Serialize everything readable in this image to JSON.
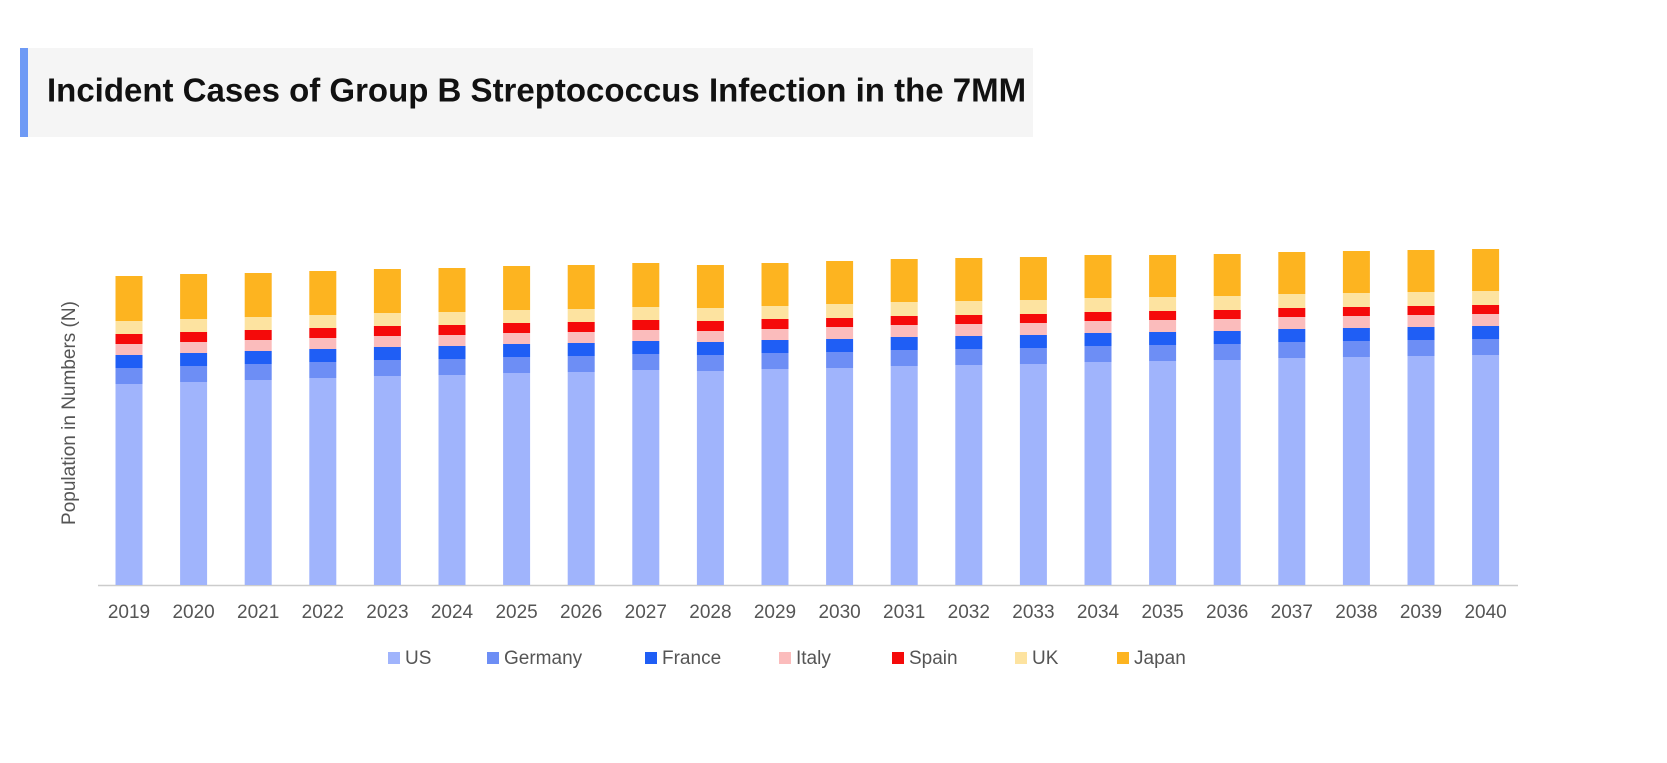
{
  "chart_data": {
    "type": "stacked-bar",
    "title": "Incident Cases of Group B Streptococcus Infection in the 7MM",
    "ylabel": "Population in Numbers (N)",
    "categories": [
      "2019",
      "2020",
      "2021",
      "2022",
      "2023",
      "2024",
      "2025",
      "2026",
      "2027",
      "2028",
      "2029",
      "2030",
      "2031",
      "2032",
      "2033",
      "2034",
      "2035",
      "2036",
      "2037",
      "2038",
      "2039",
      "2040"
    ],
    "ylim": [
      0,
      350
    ],
    "series": [
      {
        "name": "US",
        "color": "#a0b4fc",
        "values": [
          201,
          203,
          205,
          207,
          209,
          210,
          212,
          213,
          215,
          214,
          216,
          217,
          219,
          220,
          221,
          223,
          224,
          225,
          227,
          228,
          229,
          230
        ]
      },
      {
        "name": "Germany",
        "color": "#6d8ef5",
        "values": [
          16,
          16,
          16,
          16,
          16,
          16,
          16,
          16,
          16,
          16,
          16,
          16,
          16,
          16,
          16,
          16,
          16,
          16,
          16,
          16,
          16,
          16
        ]
      },
      {
        "name": "France",
        "color": "#1f5ef5",
        "values": [
          13,
          13,
          13,
          13,
          13,
          13,
          13,
          13,
          13,
          13,
          13,
          13,
          13,
          13,
          13,
          13,
          13,
          13,
          13,
          13,
          13,
          13
        ]
      },
      {
        "name": "Italy",
        "color": "#fbbcbc",
        "values": [
          11,
          11,
          11,
          11,
          11,
          11,
          11,
          11,
          11,
          11,
          11,
          12,
          12,
          12,
          12,
          12,
          12,
          12,
          12,
          12,
          12,
          12
        ]
      },
      {
        "name": "Spain",
        "color": "#f50a0a",
        "values": [
          10,
          10,
          10,
          10,
          10,
          10,
          10,
          10,
          10,
          10,
          10,
          9,
          9,
          9,
          9,
          9,
          9,
          9,
          9,
          9,
          9,
          9
        ]
      },
      {
        "name": "UK",
        "color": "#fde3a0",
        "values": [
          13,
          13,
          13,
          13,
          13,
          13,
          13,
          13,
          13,
          13,
          13,
          14,
          14,
          14,
          14,
          14,
          14,
          14,
          14,
          14,
          14,
          14
        ]
      },
      {
        "name": "Japan",
        "color": "#fdb420",
        "values": [
          45,
          45,
          44,
          44,
          44,
          44,
          44,
          44,
          44,
          43,
          43,
          43,
          43,
          43,
          43,
          43,
          42,
          42,
          42,
          42,
          42,
          42
        ]
      }
    ]
  }
}
